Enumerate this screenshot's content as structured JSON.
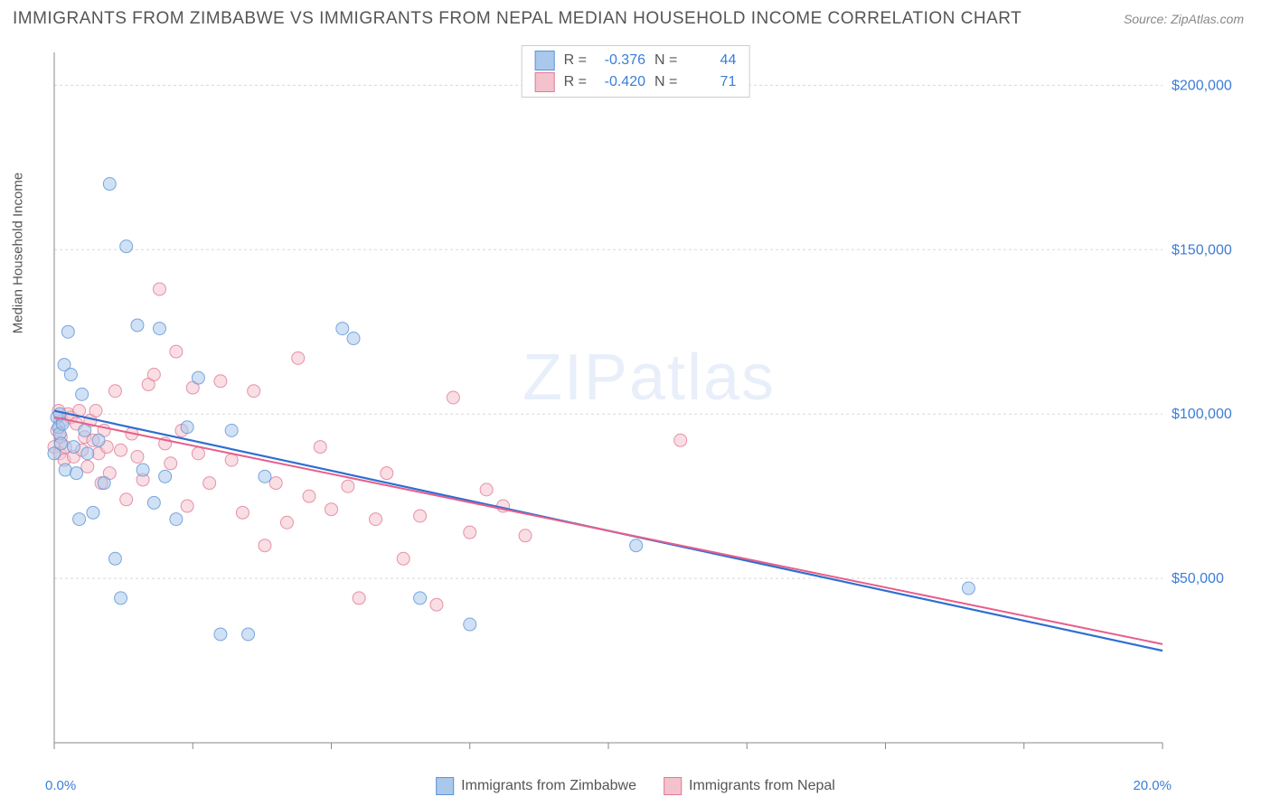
{
  "title": "IMMIGRANTS FROM ZIMBABWE VS IMMIGRANTS FROM NEPAL MEDIAN HOUSEHOLD INCOME CORRELATION CHART",
  "source": "Source: ZipAtlas.com",
  "watermark_zip": "ZIP",
  "watermark_atlas": "atlas",
  "chart": {
    "type": "scatter",
    "y_axis_label": "Median Household Income",
    "xlim": [
      0,
      20
    ],
    "ylim": [
      0,
      210000
    ],
    "x_ticks": [
      "0.0%",
      "20.0%"
    ],
    "y_ticks": [
      {
        "value": 50000,
        "label": "$50,000"
      },
      {
        "value": 100000,
        "label": "$100,000"
      },
      {
        "value": 150000,
        "label": "$150,000"
      },
      {
        "value": 200000,
        "label": "$200,000"
      }
    ],
    "background_color": "#ffffff",
    "grid_color": "#d8d8d8",
    "axis_color": "#888888",
    "tick_label_color": "#3b7dd8",
    "marker_radius": 7,
    "marker_opacity": 0.55,
    "series": [
      {
        "name": "Immigrants from Zimbabwe",
        "color_fill": "#a9c8ec",
        "color_stroke": "#5b93d6",
        "r": -0.376,
        "n": 44,
        "regression": {
          "x1": 0,
          "y1": 101000,
          "x2": 20,
          "y2": 28000,
          "color": "#2e6fd1",
          "width": 2.2,
          "dash_color": "#a9c8ec"
        },
        "points": [
          [
            0.0,
            88000
          ],
          [
            0.05,
            99000
          ],
          [
            0.08,
            96000
          ],
          [
            0.1,
            94000
          ],
          [
            0.1,
            100000
          ],
          [
            0.12,
            91000
          ],
          [
            0.15,
            97000
          ],
          [
            0.18,
            115000
          ],
          [
            0.2,
            83000
          ],
          [
            0.25,
            125000
          ],
          [
            0.3,
            112000
          ],
          [
            0.35,
            90000
          ],
          [
            0.4,
            82000
          ],
          [
            0.45,
            68000
          ],
          [
            0.5,
            106000
          ],
          [
            0.55,
            95000
          ],
          [
            0.6,
            88000
          ],
          [
            0.7,
            70000
          ],
          [
            0.8,
            92000
          ],
          [
            0.9,
            79000
          ],
          [
            1.0,
            170000
          ],
          [
            1.1,
            56000
          ],
          [
            1.2,
            44000
          ],
          [
            1.3,
            151000
          ],
          [
            1.5,
            127000
          ],
          [
            1.6,
            83000
          ],
          [
            1.8,
            73000
          ],
          [
            1.9,
            126000
          ],
          [
            2.0,
            81000
          ],
          [
            2.2,
            68000
          ],
          [
            2.4,
            96000
          ],
          [
            2.6,
            111000
          ],
          [
            3.0,
            33000
          ],
          [
            3.2,
            95000
          ],
          [
            3.5,
            33000
          ],
          [
            3.8,
            81000
          ],
          [
            5.2,
            126000
          ],
          [
            5.4,
            123000
          ],
          [
            6.6,
            44000
          ],
          [
            7.5,
            36000
          ],
          [
            10.5,
            60000
          ],
          [
            16.5,
            47000
          ]
        ]
      },
      {
        "name": "Immigrants from Nepal",
        "color_fill": "#f4c2cd",
        "color_stroke": "#e07a96",
        "r": -0.42,
        "n": 71,
        "regression": {
          "x1": 0,
          "y1": 99000,
          "x2": 20,
          "y2": 30000,
          "color": "#e85e8a",
          "width": 2.0,
          "dash_color": "#f4c2cd"
        },
        "points": [
          [
            0.0,
            90000
          ],
          [
            0.05,
            95000
          ],
          [
            0.08,
            101000
          ],
          [
            0.1,
            88000
          ],
          [
            0.12,
            93000
          ],
          [
            0.15,
            98000
          ],
          [
            0.18,
            86000
          ],
          [
            0.2,
            90000
          ],
          [
            0.25,
            100000
          ],
          [
            0.3,
            99000
          ],
          [
            0.35,
            87000
          ],
          [
            0.4,
            97000
          ],
          [
            0.45,
            101000
          ],
          [
            0.5,
            89000
          ],
          [
            0.55,
            93000
          ],
          [
            0.6,
            84000
          ],
          [
            0.65,
            98000
          ],
          [
            0.7,
            92000
          ],
          [
            0.75,
            101000
          ],
          [
            0.8,
            88000
          ],
          [
            0.85,
            79000
          ],
          [
            0.9,
            95000
          ],
          [
            0.95,
            90000
          ],
          [
            1.0,
            82000
          ],
          [
            1.1,
            107000
          ],
          [
            1.2,
            89000
          ],
          [
            1.3,
            74000
          ],
          [
            1.4,
            94000
          ],
          [
            1.5,
            87000
          ],
          [
            1.6,
            80000
          ],
          [
            1.7,
            109000
          ],
          [
            1.8,
            112000
          ],
          [
            1.9,
            138000
          ],
          [
            2.0,
            91000
          ],
          [
            2.1,
            85000
          ],
          [
            2.2,
            119000
          ],
          [
            2.3,
            95000
          ],
          [
            2.4,
            72000
          ],
          [
            2.5,
            108000
          ],
          [
            2.6,
            88000
          ],
          [
            2.8,
            79000
          ],
          [
            3.0,
            110000
          ],
          [
            3.2,
            86000
          ],
          [
            3.4,
            70000
          ],
          [
            3.6,
            107000
          ],
          [
            3.8,
            60000
          ],
          [
            4.0,
            79000
          ],
          [
            4.2,
            67000
          ],
          [
            4.4,
            117000
          ],
          [
            4.6,
            75000
          ],
          [
            4.8,
            90000
          ],
          [
            5.0,
            71000
          ],
          [
            5.3,
            78000
          ],
          [
            5.5,
            44000
          ],
          [
            5.8,
            68000
          ],
          [
            6.0,
            82000
          ],
          [
            6.3,
            56000
          ],
          [
            6.6,
            69000
          ],
          [
            6.9,
            42000
          ],
          [
            7.2,
            105000
          ],
          [
            7.5,
            64000
          ],
          [
            7.8,
            77000
          ],
          [
            8.1,
            72000
          ],
          [
            8.5,
            63000
          ],
          [
            11.3,
            92000
          ]
        ]
      }
    ]
  },
  "legend": {
    "series1_label": "Immigrants from Zimbabwe",
    "series2_label": "Immigrants from Nepal"
  },
  "stats": {
    "r_label": "R = ",
    "n_label": "N = ",
    "s1_r": "-0.376",
    "s1_n": "44",
    "s2_r": "-0.420",
    "s2_n": "71"
  }
}
